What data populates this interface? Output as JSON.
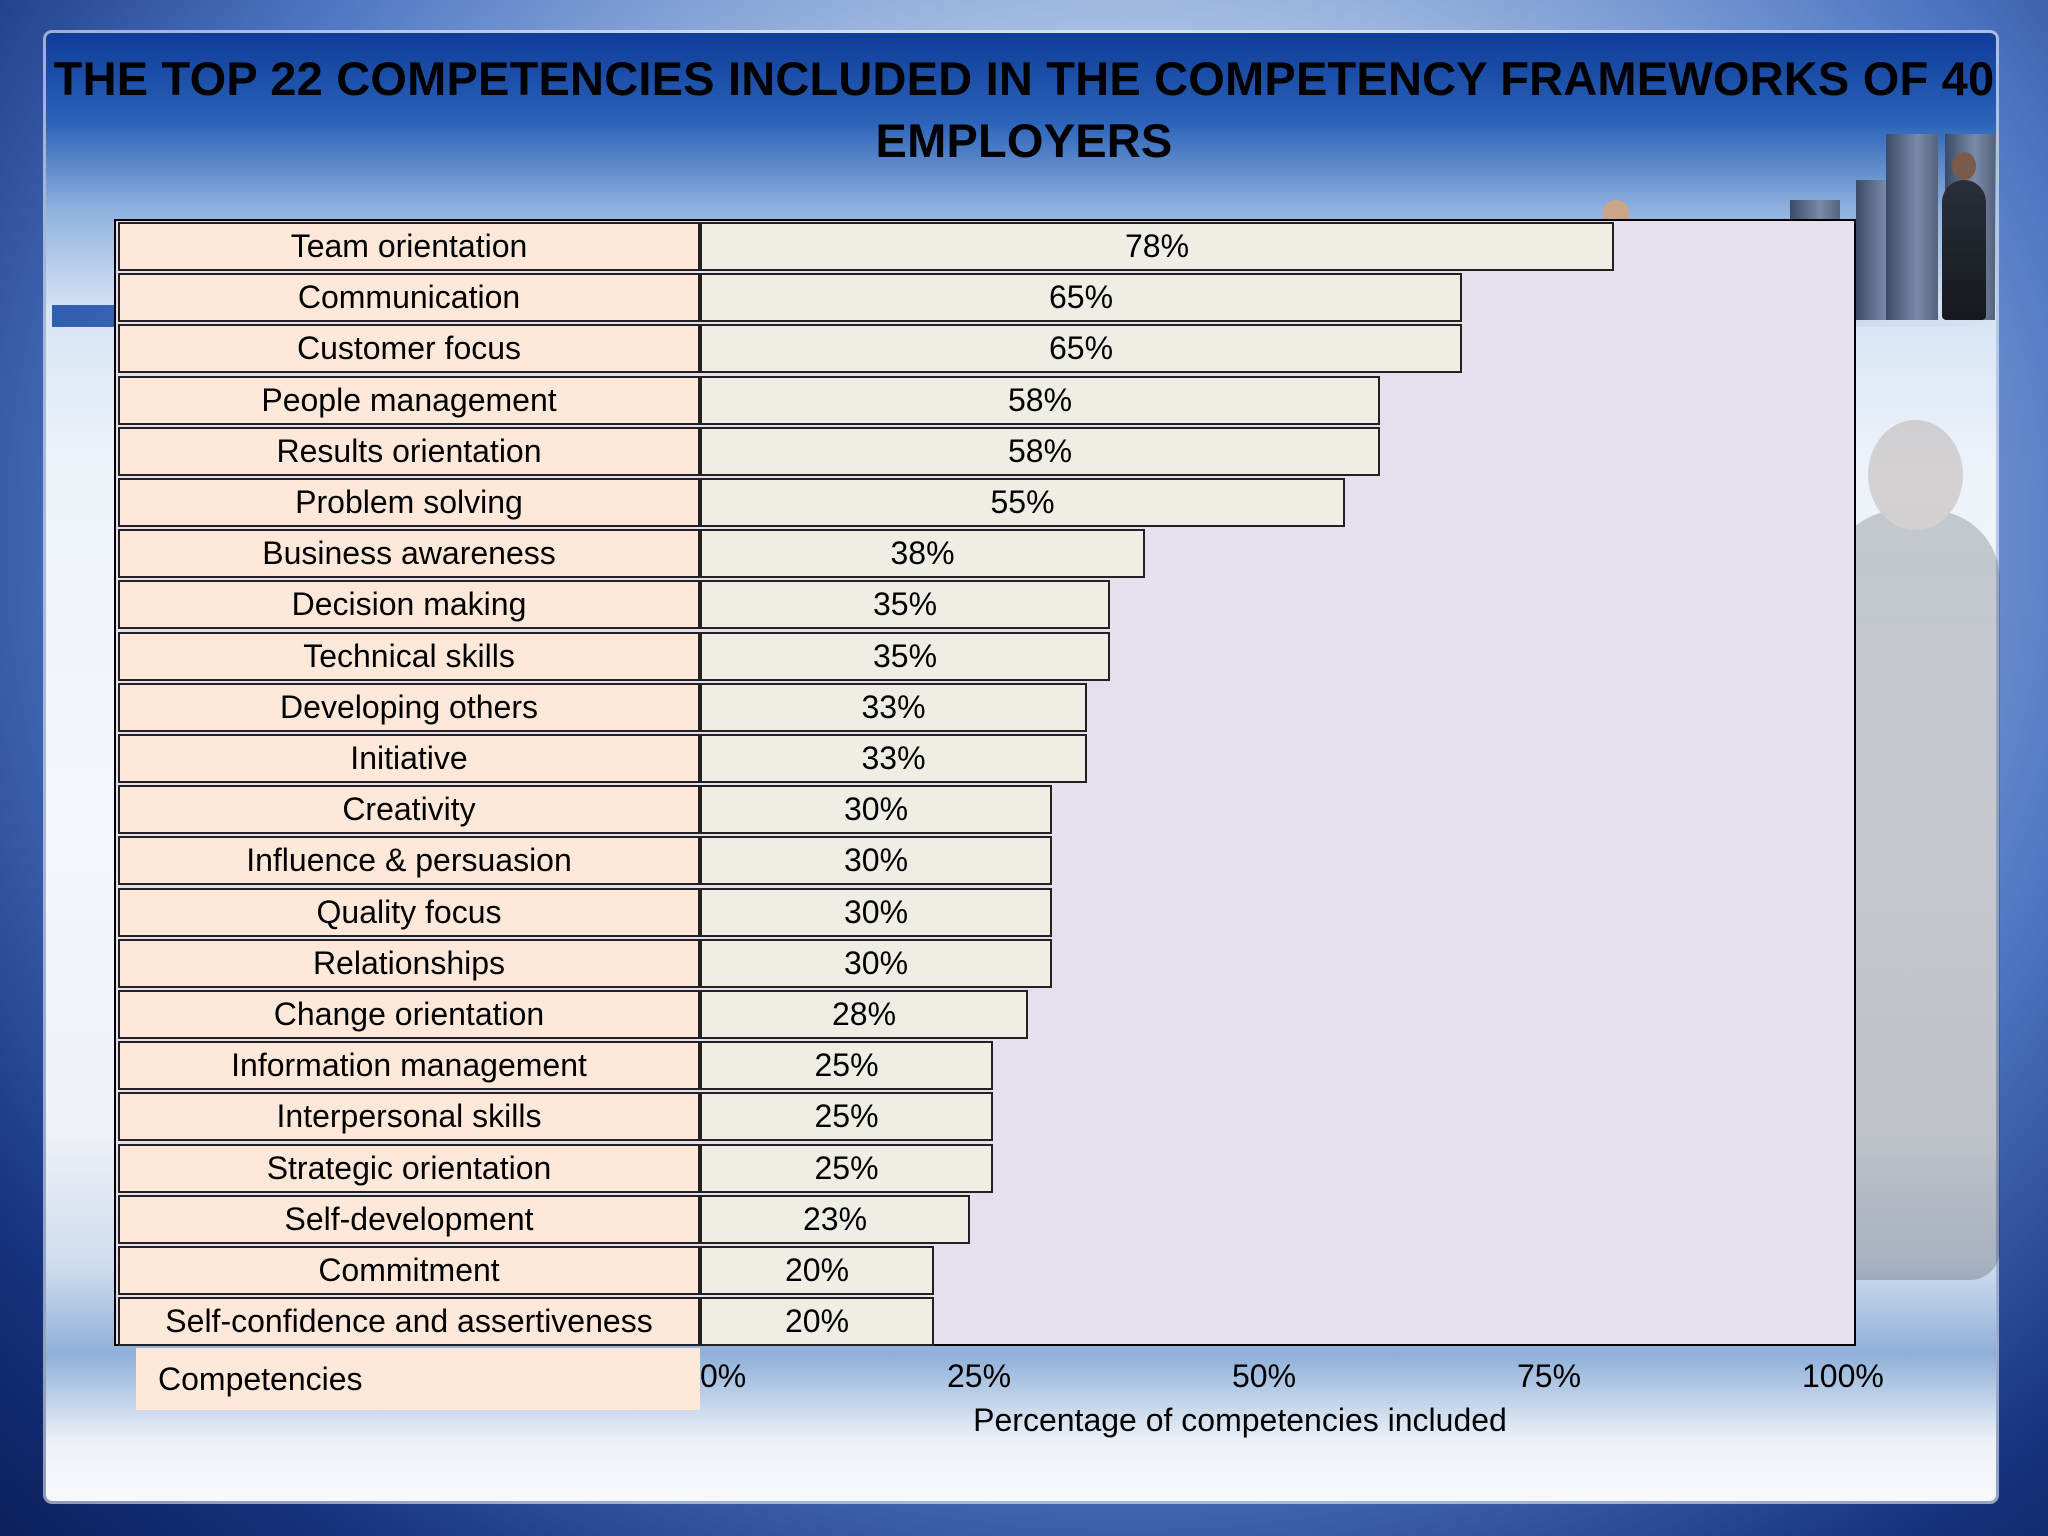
{
  "title": "THE TOP 22 COMPETENCIES INCLUDED IN THE COMPETENCY FRAMEWORKS OF 40 EMPLOYERS",
  "colors": {
    "category_fill": "#fde8da",
    "bar_fill": "#efede4",
    "plot_background": "#e6e0ee",
    "border": "#222222"
  },
  "chart_data": {
    "type": "bar",
    "orientation": "horizontal",
    "title": "THE TOP 22 COMPETENCIES INCLUDED IN THE COMPETENCY FRAMEWORKS OF 40 EMPLOYERS",
    "ylabel": "Competencies",
    "xlabel": "Percentage of competencies included",
    "xlim": [
      0,
      100
    ],
    "x_ticks": [
      "0%",
      "25%",
      "50%",
      "75%",
      "100%"
    ],
    "grid": false,
    "categories": [
      "Team orientation",
      "Communication",
      "Customer focus",
      "People management",
      "Results orientation",
      "Problem solving",
      "Business awareness",
      "Decision making",
      "Technical skills",
      "Developing others",
      "Initiative",
      "Creativity",
      "Influence & persuasion",
      "Quality focus",
      "Relationships",
      "Change orientation",
      "Information management",
      "Interpersonal skills",
      "Strategic orientation",
      "Self-development",
      "Commitment",
      "Self-confidence and assertiveness"
    ],
    "values": [
      78,
      65,
      65,
      58,
      58,
      55,
      38,
      35,
      35,
      33,
      33,
      30,
      30,
      30,
      30,
      28,
      25,
      25,
      25,
      23,
      20,
      20
    ],
    "data_labels": [
      "78%",
      "65%",
      "65%",
      "58%",
      "58%",
      "55%",
      "38%",
      "35%",
      "35%",
      "33%",
      "33%",
      "30%",
      "30%",
      "30%",
      "30%",
      "28%",
      "25%",
      "25%",
      "25%",
      "23%",
      "20%",
      "20%"
    ]
  }
}
